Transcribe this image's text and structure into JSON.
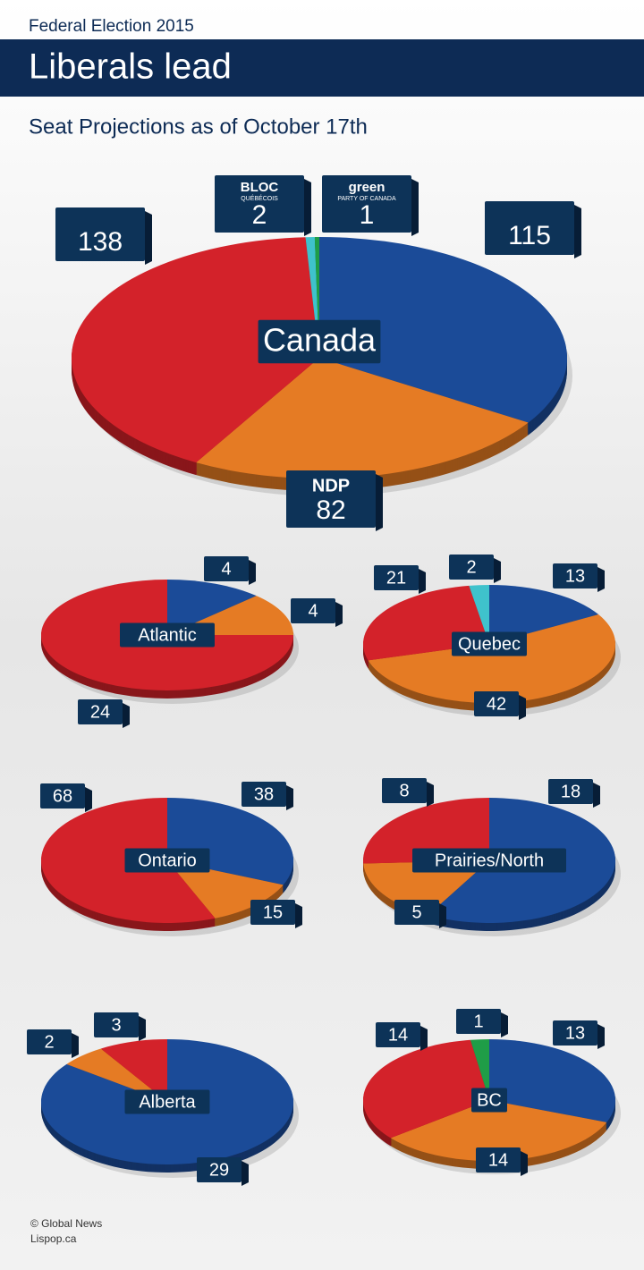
{
  "header": {
    "kicker": "Federal Election 2015",
    "title": "Liberals lead",
    "subtitle": "Seat Projections as of October 17th"
  },
  "footer": {
    "credit": "© Global News",
    "source": "Lispop.ca"
  },
  "chart_data": [
    {
      "type": "pie",
      "title": "Canada",
      "values": [
        115,
        82,
        138,
        2,
        1
      ],
      "categories": [
        null,
        "NDP",
        null,
        "BLOC",
        "green"
      ],
      "category_sublabels": [
        null,
        null,
        null,
        "QUÉBÉCOIS",
        "PARTY OF CANADA"
      ],
      "colors": [
        "#1b4b98",
        "#e57b24",
        "#d3222a",
        "#3fc2cc",
        "#1f9d47"
      ]
    },
    {
      "type": "pie",
      "title": "Atlantic",
      "values": [
        4,
        4,
        24
      ],
      "colors": [
        "#1b4b98",
        "#e57b24",
        "#d3222a"
      ]
    },
    {
      "type": "pie",
      "title": "Quebec",
      "values": [
        13,
        42,
        21,
        2
      ],
      "colors": [
        "#1b4b98",
        "#e57b24",
        "#d3222a",
        "#3fc2cc"
      ]
    },
    {
      "type": "pie",
      "title": "Ontario",
      "values": [
        38,
        15,
        68
      ],
      "colors": [
        "#1b4b98",
        "#e57b24",
        "#d3222a"
      ]
    },
    {
      "type": "pie",
      "title": "Prairies/North",
      "values": [
        18,
        5,
        8
      ],
      "colors": [
        "#1b4b98",
        "#e57b24",
        "#d3222a"
      ]
    },
    {
      "type": "pie",
      "title": "Alberta",
      "values": [
        29,
        2,
        3
      ],
      "colors": [
        "#1b4b98",
        "#e57b24",
        "#d3222a"
      ]
    },
    {
      "type": "pie",
      "title": "BC",
      "values": [
        13,
        14,
        14,
        1
      ],
      "colors": [
        "#1b4b98",
        "#e57b24",
        "#d3222a",
        "#1f9d47"
      ]
    }
  ]
}
